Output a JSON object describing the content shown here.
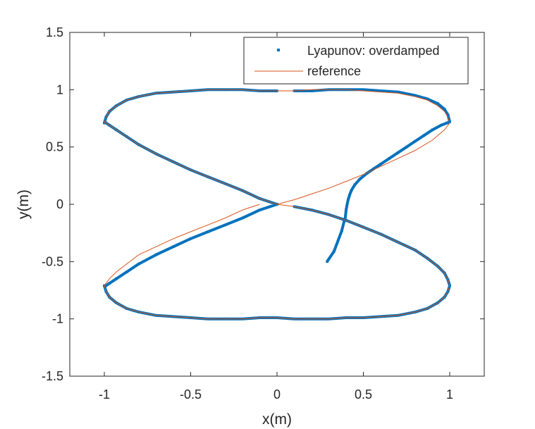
{
  "chart_data": {
    "type": "line",
    "title": "",
    "xlabel": "x(m)",
    "ylabel": "y(m)",
    "xlim": [
      -1.2,
      1.2
    ],
    "ylim": [
      -1.5,
      1.5
    ],
    "grid": false,
    "legend_position": "top-right",
    "xticks": [
      -1,
      -0.5,
      0,
      0.5,
      1
    ],
    "yticks": [
      -1.5,
      -1,
      -0.5,
      0,
      0.5,
      1,
      1.5
    ],
    "xtick_labels": [
      "-1",
      "-0.5",
      "0",
      "0.5",
      "1"
    ],
    "ytick_labels": [
      "-1.5",
      "-1",
      "-0.5",
      "0",
      "0.5",
      "1",
      "1.5"
    ],
    "colors": {
      "series1": "#0072BD",
      "series2": "#D95319",
      "axis": "#262626"
    },
    "series": [
      {
        "name": "Lyapunov: overdamped",
        "style": "points",
        "x": [
          0.29,
          0.33,
          0.375,
          0.385,
          0.395,
          0.4,
          0.405,
          0.412,
          0.42,
          0.43,
          0.45,
          0.48,
          0.52,
          0.56,
          0.6,
          0.65,
          0.7,
          0.75,
          0.8,
          0.85,
          0.9,
          0.95,
          0.985,
          1.0,
          0.99,
          0.97,
          0.93,
          0.87,
          0.8,
          0.7,
          0.6,
          0.5,
          0.4,
          0.3,
          0.2,
          0.1,
          0.0,
          -0.1,
          -0.2,
          -0.3,
          -0.4,
          -0.5,
          -0.6,
          -0.7,
          -0.8,
          -0.87,
          -0.93,
          -0.97,
          -0.99,
          -1.0,
          -0.99,
          -0.97,
          -0.93,
          -0.87,
          -0.8,
          -0.7,
          -0.6,
          -0.5,
          -0.4,
          -0.3,
          -0.2,
          -0.1,
          0.0,
          0.1,
          0.2,
          0.3,
          0.4,
          0.5,
          0.6,
          0.7,
          0.8,
          0.87,
          0.93,
          0.97,
          0.99,
          1.0,
          0.99,
          0.97,
          0.93,
          0.87,
          0.8,
          0.7,
          0.6,
          0.5,
          0.4,
          0.3,
          0.2,
          0.1,
          0.0,
          -0.1,
          -0.2,
          -0.3,
          -0.4,
          -0.5,
          -0.6,
          -0.7,
          -0.8,
          -0.87,
          -0.93,
          -0.97,
          -0.99,
          -1.0,
          -0.99,
          -0.97,
          -0.93,
          -0.87,
          -0.8,
          -0.7,
          -0.6,
          -0.5,
          -0.4,
          -0.3,
          -0.2,
          -0.1,
          0.0
        ],
        "y": [
          -0.5,
          -0.41,
          -0.23,
          -0.17,
          -0.12,
          -0.05,
          -0.01,
          0.04,
          0.08,
          0.12,
          0.17,
          0.22,
          0.27,
          0.31,
          0.35,
          0.4,
          0.45,
          0.5,
          0.55,
          0.6,
          0.65,
          0.69,
          0.71,
          0.72,
          0.78,
          0.83,
          0.88,
          0.92,
          0.95,
          0.98,
          0.99,
          1.0,
          1.0,
          1.0,
          0.99,
          0.99,
          0.0,
          -0.05,
          -0.12,
          -0.18,
          -0.24,
          -0.3,
          -0.37,
          -0.44,
          -0.52,
          -0.59,
          -0.65,
          -0.69,
          -0.71,
          -0.71,
          -0.76,
          -0.81,
          -0.86,
          -0.91,
          -0.94,
          -0.97,
          -0.98,
          -0.99,
          -1.0,
          -1.0,
          -1.0,
          -0.99,
          -0.99,
          -1.0,
          -1.0,
          -1.0,
          -0.99,
          -0.99,
          -0.98,
          -0.97,
          -0.94,
          -0.91,
          -0.86,
          -0.81,
          -0.76,
          -0.71,
          -0.66,
          -0.6,
          -0.54,
          -0.47,
          -0.4,
          -0.33,
          -0.26,
          -0.2,
          -0.14,
          -0.09,
          -0.05,
          -0.02,
          0.0,
          0.05,
          0.12,
          0.18,
          0.24,
          0.3,
          0.37,
          0.44,
          0.52,
          0.59,
          0.65,
          0.69,
          0.71,
          0.71,
          0.76,
          0.81,
          0.86,
          0.91,
          0.94,
          0.97,
          0.98,
          0.99,
          1.0,
          1.0,
          1.0,
          0.99,
          0.99
        ]
      },
      {
        "name": "reference",
        "style": "line",
        "x": [
          0.0,
          0.1,
          0.2,
          0.3,
          0.4,
          0.5,
          0.6,
          0.7,
          0.8,
          0.9,
          0.97,
          1.0,
          0.99,
          0.97,
          0.93,
          0.87,
          0.8,
          0.7,
          0.6,
          0.5,
          0.4,
          0.3,
          0.2,
          0.1,
          0.0,
          -0.1,
          -0.2,
          -0.3,
          -0.4,
          -0.5,
          -0.6,
          -0.7,
          -0.8,
          -0.87,
          -0.93,
          -0.97,
          -0.99,
          -1.0,
          -0.99,
          -0.97,
          -0.93,
          -0.87,
          -0.8,
          -0.7,
          -0.6,
          -0.5,
          -0.4,
          -0.3,
          -0.2,
          -0.1,
          0.0,
          0.1,
          0.2,
          0.3,
          0.4,
          0.5,
          0.6,
          0.7,
          0.8,
          0.87,
          0.93,
          0.97,
          0.99,
          1.0,
          0.99,
          0.97,
          0.93,
          0.87,
          0.8,
          0.7,
          0.6,
          0.5,
          0.4,
          0.3,
          0.2,
          0.1,
          0.0,
          -0.1,
          -0.2,
          -0.3,
          -0.4,
          -0.5,
          -0.6,
          -0.7,
          -0.8,
          -0.87,
          -0.93,
          -0.97,
          -0.99,
          -1.0,
          -0.99,
          -0.97,
          -0.93,
          -0.87,
          -0.8,
          -0.7,
          -0.6,
          -0.5,
          -0.4,
          -0.3,
          -0.2,
          -0.1,
          0.0
        ],
        "y": [
          0.0,
          0.04,
          0.09,
          0.14,
          0.2,
          0.26,
          0.33,
          0.4,
          0.47,
          0.56,
          0.65,
          0.71,
          0.76,
          0.81,
          0.86,
          0.91,
          0.94,
          0.97,
          0.98,
          0.99,
          1.0,
          1.0,
          1.0,
          0.99,
          0.99,
          0.0,
          -0.05,
          -0.12,
          -0.18,
          -0.24,
          -0.3,
          -0.37,
          -0.44,
          -0.52,
          -0.59,
          -0.65,
          -0.69,
          -0.71,
          -0.76,
          -0.81,
          -0.86,
          -0.91,
          -0.94,
          -0.97,
          -0.98,
          -0.99,
          -1.0,
          -1.0,
          -1.0,
          -0.99,
          -0.99,
          -1.0,
          -1.0,
          -1.0,
          -0.99,
          -0.99,
          -0.98,
          -0.97,
          -0.94,
          -0.91,
          -0.86,
          -0.81,
          -0.76,
          -0.71,
          -0.66,
          -0.6,
          -0.54,
          -0.47,
          -0.4,
          -0.33,
          -0.26,
          -0.2,
          -0.14,
          -0.09,
          -0.05,
          -0.02,
          0.0,
          0.05,
          0.12,
          0.18,
          0.24,
          0.3,
          0.37,
          0.44,
          0.52,
          0.59,
          0.65,
          0.69,
          0.71,
          0.71,
          0.76,
          0.81,
          0.86,
          0.91,
          0.94,
          0.97,
          0.98,
          0.99,
          1.0,
          1.0,
          1.0,
          0.99,
          0.99
        ]
      }
    ]
  }
}
